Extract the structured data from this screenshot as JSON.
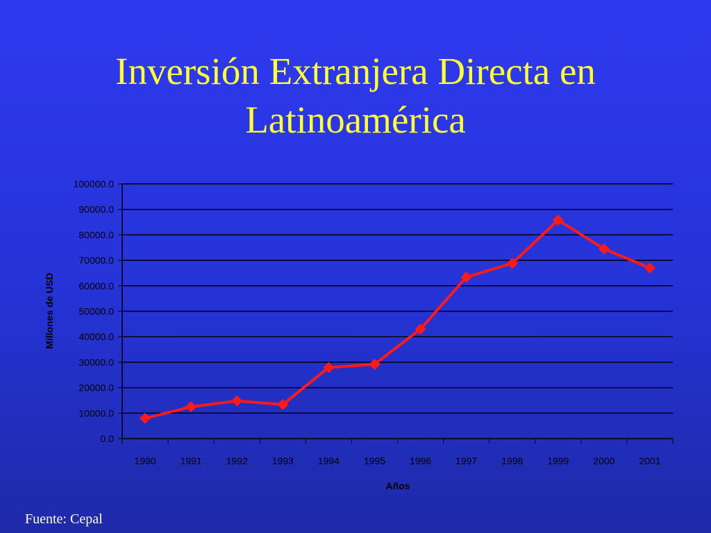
{
  "slide": {
    "title_line1": "Inversión Extranjera Directa en",
    "title_line2": "Latinoamérica",
    "source": "Fuente: Cepal"
  },
  "colors": {
    "title": "#ffff33",
    "series_line": "#ff1a1a",
    "gridlines": "#000000",
    "axis_text": "#000000",
    "source_text": "#ffffff"
  },
  "chart_data": {
    "type": "line",
    "title": "",
    "xlabel": "Años",
    "ylabel": "Millones de USD",
    "ylim": [
      0,
      100000
    ],
    "y_ticks": [
      "0.0",
      "10000.0",
      "20000.0",
      "30000.0",
      "40000.0",
      "50000.0",
      "60000.0",
      "70000.0",
      "80000.0",
      "90000.0",
      "100000.0"
    ],
    "grid": true,
    "legend": "none",
    "categories": [
      "1990",
      "1991",
      "1992",
      "1993",
      "1994",
      "1995",
      "1996",
      "1997",
      "1998",
      "1999",
      "2000",
      "2001"
    ],
    "series": [
      {
        "values": [
          8000,
          12500,
          14800,
          13400,
          27900,
          29200,
          43000,
          63400,
          68800,
          85800,
          74500,
          67000
        ],
        "marker": "diamond"
      }
    ]
  }
}
